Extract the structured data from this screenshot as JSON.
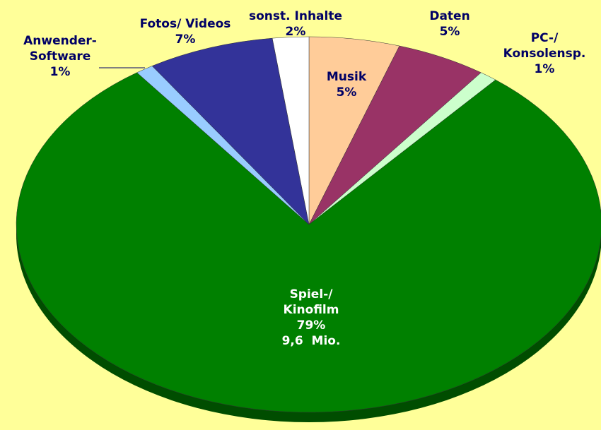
{
  "chart_data": {
    "type": "pie",
    "categories": [
      "Musik",
      "Daten",
      "PC-/\nKonsolensp.",
      "Spiel-/\nKinofilm",
      "Anwender-\nSoftware",
      "Fotos/ Videos",
      "sonst. Inhalte"
    ],
    "values": [
      5,
      5,
      1,
      79,
      1,
      7,
      2
    ],
    "value_labels": [
      "5%",
      "5%",
      "1%",
      "79%",
      "1%",
      "7%",
      "2%"
    ],
    "colors": [
      "#ffcc99",
      "#993366",
      "#ccffcc",
      "#008000",
      "#99ccff",
      "#333399",
      "#ffffff"
    ],
    "annotations": [
      "9,6  Mio."
    ]
  }
}
